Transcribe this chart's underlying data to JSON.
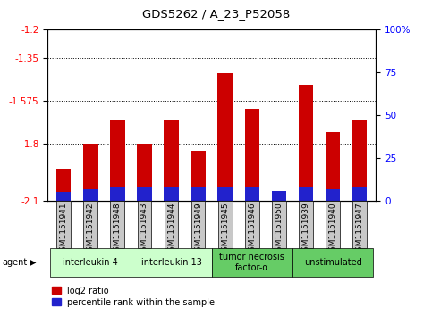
{
  "title": "GDS5262 / A_23_P52058",
  "samples": [
    "GSM1151941",
    "GSM1151942",
    "GSM1151948",
    "GSM1151943",
    "GSM1151944",
    "GSM1151949",
    "GSM1151945",
    "GSM1151946",
    "GSM1151950",
    "GSM1151939",
    "GSM1151940",
    "GSM1151947"
  ],
  "log2_ratio": [
    -1.93,
    -1.8,
    -1.68,
    -1.8,
    -1.68,
    -1.84,
    -1.43,
    -1.62,
    -2.05,
    -1.49,
    -1.74,
    -1.68
  ],
  "percentile_rank_pct": [
    5,
    7,
    8,
    8,
    8,
    8,
    8,
    8,
    6,
    8,
    7,
    8
  ],
  "bar_bottom": -2.1,
  "ylim_left": [
    -2.1,
    -1.2
  ],
  "ylim_right": [
    0,
    100
  ],
  "yticks_left": [
    -2.1,
    -1.8,
    -1.575,
    -1.35,
    -1.2
  ],
  "ytick_labels_left": [
    "-2.1",
    "-1.8",
    "-1.575",
    "-1.35",
    "-1.2"
  ],
  "yticks_right": [
    0,
    25,
    50,
    75,
    100
  ],
  "ytick_labels_right": [
    "0",
    "25",
    "50",
    "75",
    "100%"
  ],
  "grid_ticks": [
    -1.35,
    -1.575,
    -1.8
  ],
  "bar_color_red": "#cc0000",
  "bar_color_blue": "#2222cc",
  "agent_groups": [
    {
      "label": "interleukin 4",
      "start": 0,
      "end": 3,
      "color": "#ccffcc"
    },
    {
      "label": "interleukin 13",
      "start": 3,
      "end": 6,
      "color": "#ccffcc"
    },
    {
      "label": "tumor necrosis\nfactor-α",
      "start": 6,
      "end": 9,
      "color": "#66cc66"
    },
    {
      "label": "unstimulated",
      "start": 9,
      "end": 12,
      "color": "#66cc66"
    }
  ],
  "legend_red_label": "log2 ratio",
  "legend_blue_label": "percentile rank within the sample",
  "bar_width": 0.55,
  "xtick_bg_color": "#c8c8c8"
}
